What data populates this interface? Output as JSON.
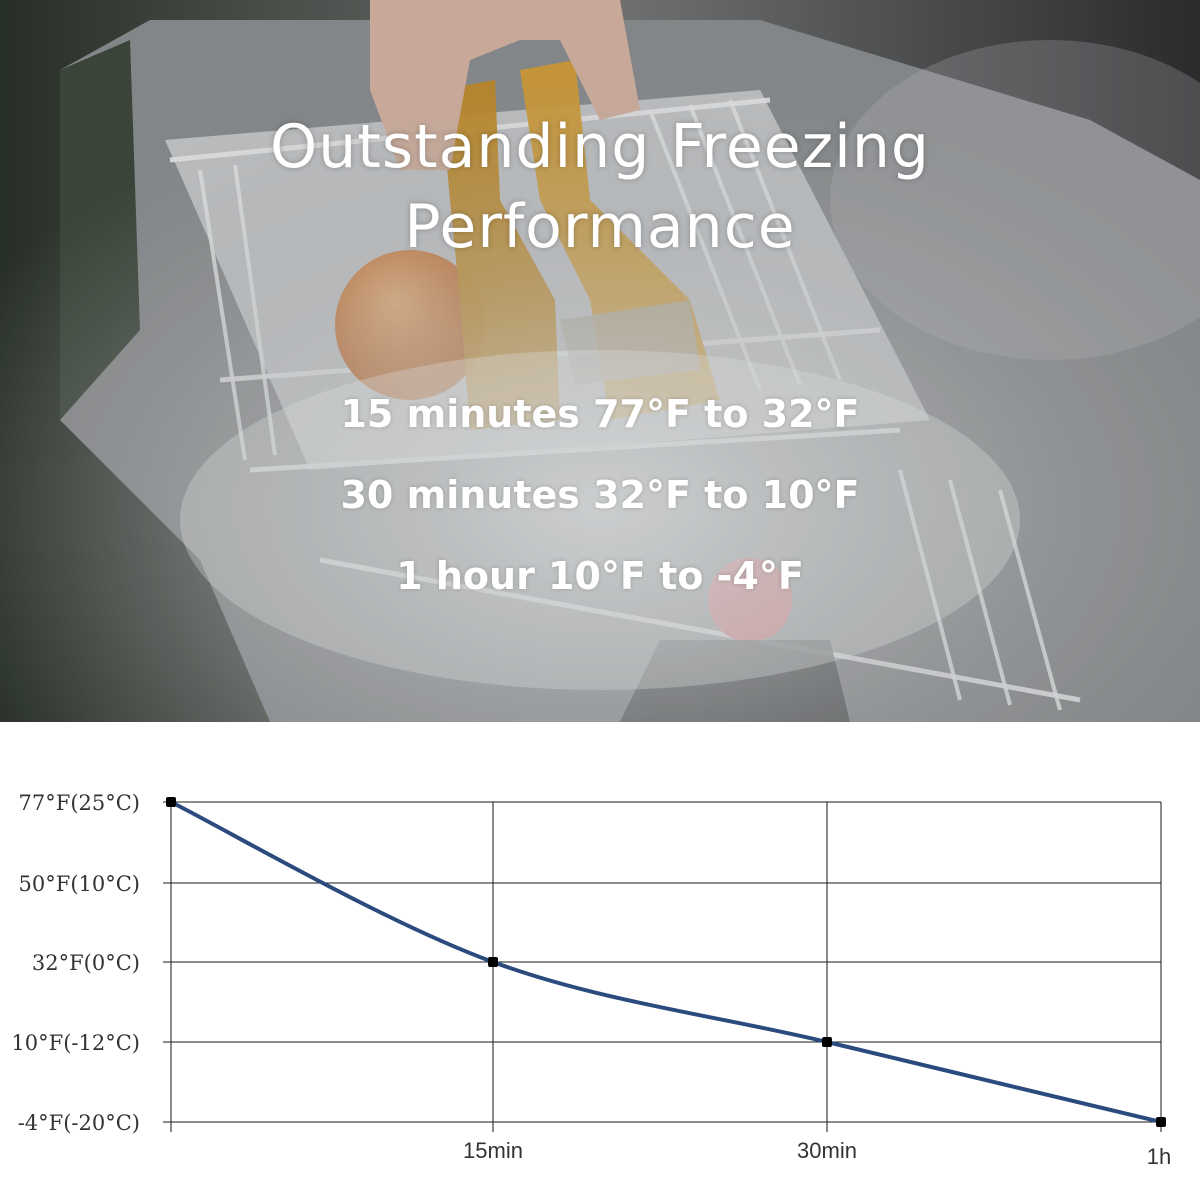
{
  "hero": {
    "title_line1": "Outstanding Freezing",
    "title_line2": "Performance",
    "stats": [
      "15 minutes 77°F to 32°F",
      "30 minutes 32°F to 10°F",
      "1 hour 10°F to -4°F"
    ]
  },
  "chart_data": {
    "type": "line",
    "title": "",
    "xlabel": "",
    "ylabel": "",
    "x_tick_labels": [
      "15min",
      "30min",
      "1h"
    ],
    "y_tick_labels": [
      "77°F(25°C)",
      "50°F(10°C)",
      "32°F(0°C)",
      "10°F(-12°C)",
      "-4°F(-20°C)"
    ],
    "points": [
      {
        "x": "0",
        "y": "77°F(25°C)"
      },
      {
        "x": "15min",
        "y": "32°F(0°C)"
      },
      {
        "x": "30min",
        "y": "10°F(-12°C)"
      },
      {
        "x": "1h",
        "y": "-4°F(-20°C)"
      }
    ],
    "line_color": "#2b4a7d",
    "marker_color": "#000000",
    "grid": true
  }
}
